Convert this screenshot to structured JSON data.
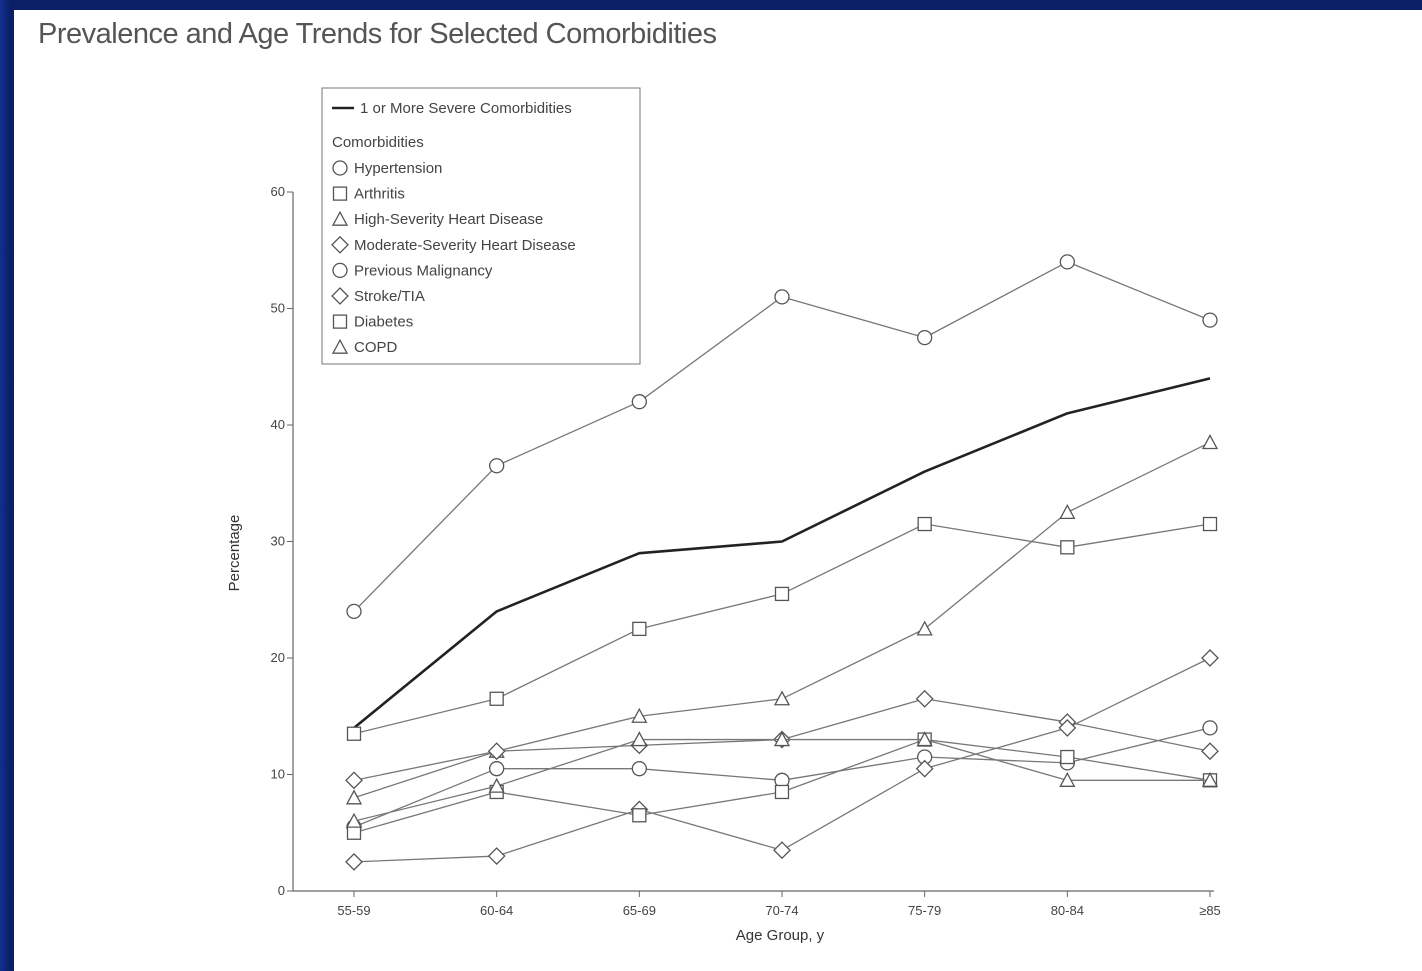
{
  "slide": {
    "title": "Prevalence and Age Trends for Selected Comorbidities"
  },
  "colors": {
    "frame": "#0b1f66",
    "series_line": "#777777",
    "severe_line": "#222222",
    "marker_fill": "#ffffff"
  },
  "chart_data": {
    "type": "line",
    "title": "",
    "xlabel": "Age Group, y",
    "ylabel": "Percentage",
    "categories": [
      "55-59",
      "60-64",
      "65-69",
      "70-74",
      "75-79",
      "80-84",
      "≥85"
    ],
    "ylim": [
      0,
      60
    ],
    "yticks": [
      "0",
      "10",
      "20",
      "30",
      "40",
      "50",
      "60"
    ],
    "grid": false,
    "legend_position": "top-left",
    "legend_header": "Comorbidities",
    "series": [
      {
        "name": "1 or More Severe Comorbidities",
        "marker": "none",
        "style": "bold",
        "values": [
          14,
          24,
          29,
          30,
          36,
          41,
          44
        ]
      },
      {
        "name": "Hypertension",
        "marker": "circle",
        "values": [
          24,
          36.5,
          42,
          51,
          47.5,
          54,
          49
        ]
      },
      {
        "name": "Arthritis",
        "marker": "square",
        "values": [
          13.5,
          16.5,
          22.5,
          25.5,
          31.5,
          29.5,
          31.5
        ]
      },
      {
        "name": "High-Severity Heart Disease",
        "marker": "triangle",
        "values": [
          8,
          12,
          15,
          16.5,
          22.5,
          32.5,
          38.5
        ]
      },
      {
        "name": "Moderate-Severity Heart Disease",
        "marker": "diamond",
        "values": [
          9.5,
          12,
          12.5,
          13,
          16.5,
          14.5,
          12
        ]
      },
      {
        "name": "Previous Malignancy",
        "marker": "circle",
        "values": [
          5.5,
          10.5,
          10.5,
          9.5,
          11.5,
          11,
          14
        ]
      },
      {
        "name": "Stroke/TIA",
        "marker": "diamond",
        "values": [
          2.5,
          3,
          7,
          3.5,
          10.5,
          14,
          20
        ]
      },
      {
        "name": "Diabetes",
        "marker": "square",
        "values": [
          5,
          8.5,
          6.5,
          8.5,
          13,
          11.5,
          9.5
        ]
      },
      {
        "name": "COPD",
        "marker": "triangle",
        "values": [
          6,
          9,
          13,
          13,
          13,
          9.5,
          9.5
        ]
      }
    ]
  }
}
